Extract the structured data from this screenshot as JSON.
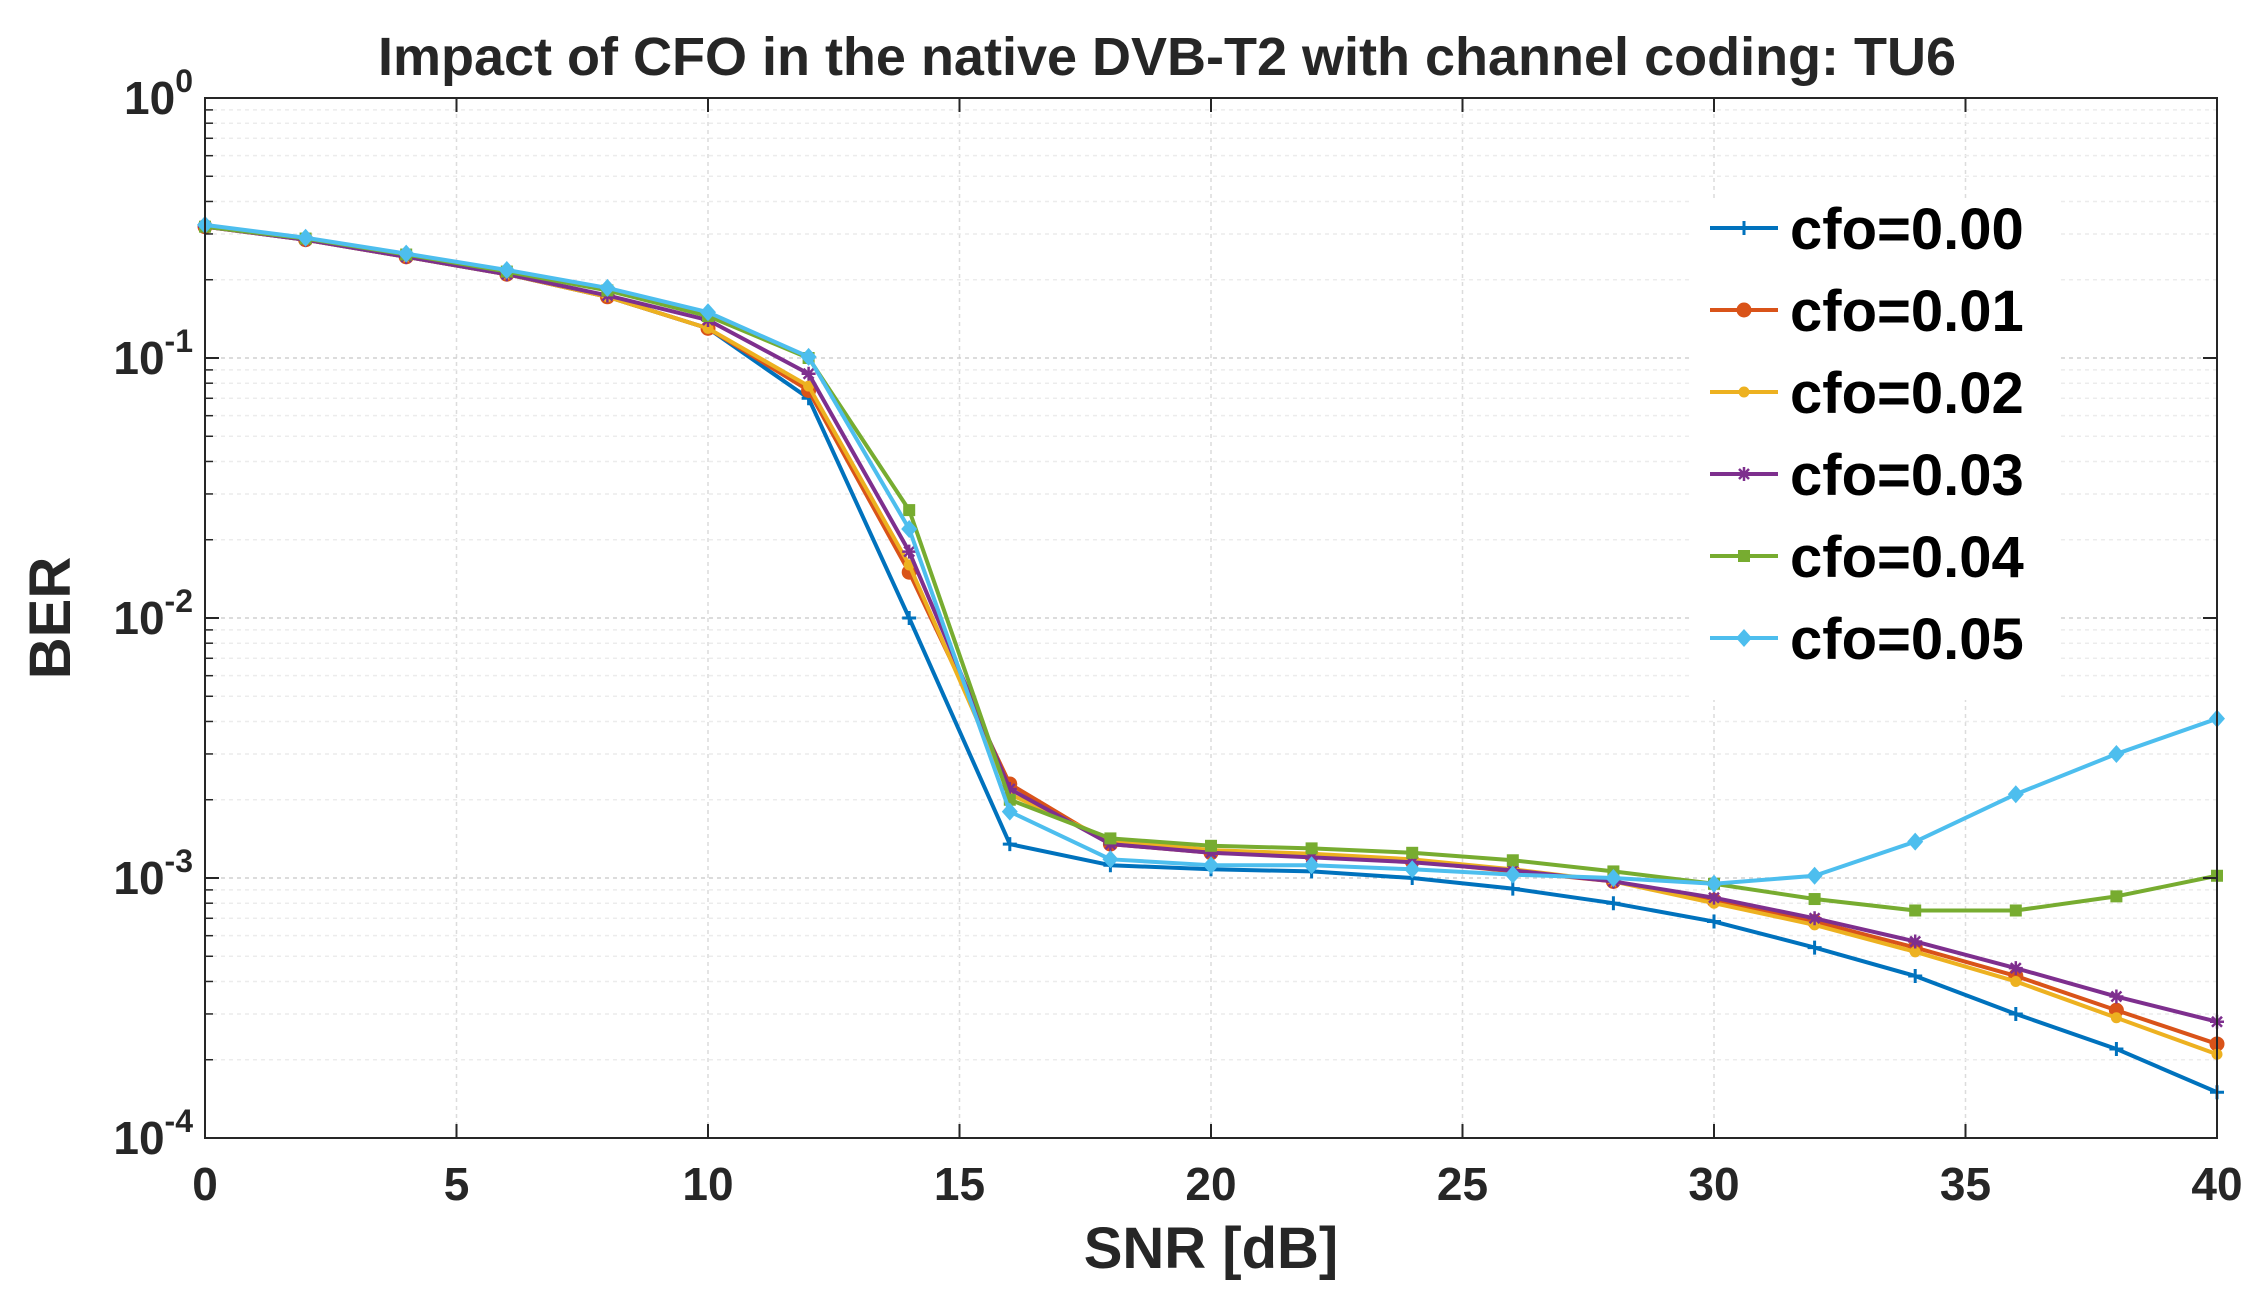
{
  "chart_data": {
    "type": "line",
    "title": "Impact of CFO in the native DVB-T2 with channel coding: TU6",
    "xlabel": "SNR [dB]",
    "ylabel": "BER",
    "xlim": [
      0,
      40
    ],
    "ylim": [
      0.0001,
      1
    ],
    "yscale": "log",
    "grid": true,
    "legend_position": "top-right",
    "xticks": [
      "0",
      "5",
      "10",
      "15",
      "20",
      "25",
      "30",
      "35",
      "40"
    ],
    "yticks": [
      {
        "base": "10",
        "exp": "-4"
      },
      {
        "base": "10",
        "exp": "-3"
      },
      {
        "base": "10",
        "exp": "-2"
      },
      {
        "base": "10",
        "exp": "-1"
      },
      {
        "base": "10",
        "exp": "0"
      }
    ],
    "x": [
      0,
      2,
      4,
      6,
      8,
      10,
      12,
      14,
      16,
      18,
      20,
      22,
      24,
      26,
      28,
      30,
      32,
      34,
      36,
      38,
      40
    ],
    "series": [
      {
        "name": "cfo=0.00",
        "color": "#0072BD",
        "marker": "plus",
        "values": [
          0.32,
          0.285,
          0.245,
          0.21,
          0.172,
          0.13,
          0.07,
          0.01,
          0.00135,
          0.00112,
          0.00108,
          0.00106,
          0.001,
          0.00091,
          0.0008,
          0.00068,
          0.00054,
          0.00042,
          0.0003,
          0.00022,
          0.00015
        ]
      },
      {
        "name": "cfo=0.01",
        "color": "#D95319",
        "marker": "circle",
        "values": [
          0.32,
          0.285,
          0.245,
          0.21,
          0.172,
          0.13,
          0.075,
          0.015,
          0.0023,
          0.00135,
          0.00125,
          0.00122,
          0.00116,
          0.00106,
          0.00097,
          0.00082,
          0.00068,
          0.00054,
          0.00042,
          0.00031,
          0.00023
        ]
      },
      {
        "name": "cfo=0.02",
        "color": "#EDB120",
        "marker": "point",
        "values": [
          0.32,
          0.285,
          0.245,
          0.21,
          0.172,
          0.13,
          0.078,
          0.016,
          0.0021,
          0.0014,
          0.00128,
          0.00124,
          0.00118,
          0.00108,
          0.00097,
          0.0008,
          0.00066,
          0.00052,
          0.0004,
          0.00029,
          0.00021
        ]
      },
      {
        "name": "cfo=0.03",
        "color": "#7E2F8E",
        "marker": "star",
        "values": [
          0.32,
          0.285,
          0.245,
          0.21,
          0.174,
          0.14,
          0.087,
          0.018,
          0.0022,
          0.00135,
          0.00125,
          0.0012,
          0.00115,
          0.00107,
          0.00097,
          0.00084,
          0.0007,
          0.00057,
          0.00045,
          0.00035,
          0.00028
        ]
      },
      {
        "name": "cfo=0.04",
        "color": "#77AC30",
        "marker": "square",
        "values": [
          0.32,
          0.288,
          0.25,
          0.215,
          0.182,
          0.145,
          0.1,
          0.026,
          0.002,
          0.00142,
          0.00133,
          0.0013,
          0.00125,
          0.00117,
          0.00106,
          0.00095,
          0.00083,
          0.00075,
          0.00075,
          0.00085,
          0.00102
        ]
      },
      {
        "name": "cfo=0.05",
        "color": "#4DBEEE",
        "marker": "diamond",
        "values": [
          0.325,
          0.29,
          0.252,
          0.218,
          0.186,
          0.15,
          0.101,
          0.022,
          0.0018,
          0.00118,
          0.00112,
          0.00112,
          0.00108,
          0.00103,
          0.001,
          0.00095,
          0.00102,
          0.00138,
          0.0021,
          0.003,
          0.0041
        ]
      }
    ]
  }
}
